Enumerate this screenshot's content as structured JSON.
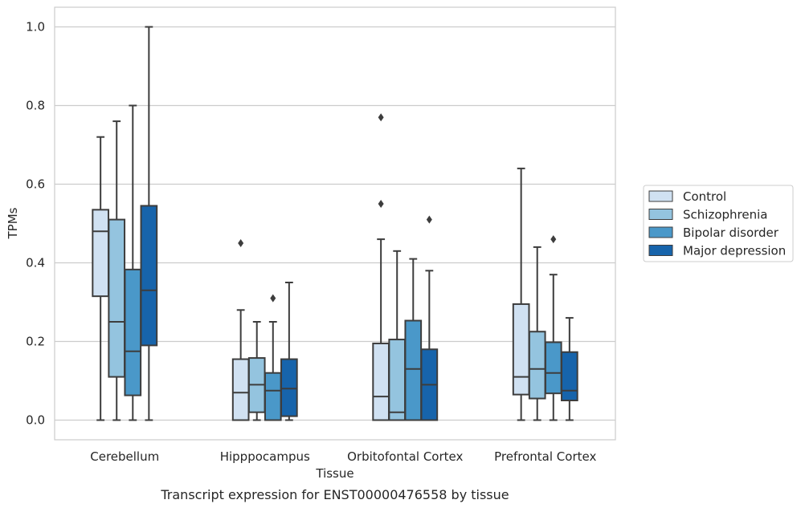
{
  "chart_data": {
    "type": "boxplot",
    "xlabel": "Tissue",
    "ylabel": "TPMs",
    "caption": "Transcript expression for ENST00000476558 by tissue",
    "ylim": [
      -0.05,
      1.05
    ],
    "yticks": [
      0.0,
      0.2,
      0.4,
      0.6,
      0.8,
      1.0
    ],
    "ytick_labels": [
      "0.0",
      "0.2",
      "0.4",
      "0.6",
      "0.8",
      "1.0"
    ],
    "grid": "horizontal",
    "legend_position": "right",
    "categories": [
      "Cerebellum",
      "Hipppocampus",
      "Orbitofontal Cortex",
      "Prefrontal Cortex"
    ],
    "series": [
      {
        "name": "Control",
        "color": "#d0e1f2",
        "boxes": [
          {
            "whislo": 0.0,
            "q1": 0.315,
            "med": 0.48,
            "q3": 0.535,
            "whishi": 0.72,
            "fliers": []
          },
          {
            "whislo": 0.0,
            "q1": 0.0,
            "med": 0.07,
            "q3": 0.155,
            "whishi": 0.28,
            "fliers": [
              0.45
            ]
          },
          {
            "whislo": 0.0,
            "q1": 0.0,
            "med": 0.06,
            "q3": 0.195,
            "whishi": 0.46,
            "fliers": [
              0.55,
              0.77
            ]
          },
          {
            "whislo": 0.0,
            "q1": 0.065,
            "med": 0.11,
            "q3": 0.295,
            "whishi": 0.64,
            "fliers": []
          }
        ]
      },
      {
        "name": "Schizophrenia",
        "color": "#94c4df",
        "boxes": [
          {
            "whislo": 0.0,
            "q1": 0.11,
            "med": 0.25,
            "q3": 0.51,
            "whishi": 0.76,
            "fliers": []
          },
          {
            "whislo": 0.0,
            "q1": 0.02,
            "med": 0.09,
            "q3": 0.158,
            "whishi": 0.25,
            "fliers": []
          },
          {
            "whislo": 0.0,
            "q1": 0.0,
            "med": 0.02,
            "q3": 0.205,
            "whishi": 0.43,
            "fliers": []
          },
          {
            "whislo": 0.0,
            "q1": 0.055,
            "med": 0.13,
            "q3": 0.225,
            "whishi": 0.44,
            "fliers": []
          }
        ]
      },
      {
        "name": "Bipolar disorder",
        "color": "#4a98c9",
        "boxes": [
          {
            "whislo": 0.0,
            "q1": 0.063,
            "med": 0.175,
            "q3": 0.383,
            "whishi": 0.8,
            "fliers": []
          },
          {
            "whislo": 0.0,
            "q1": 0.0,
            "med": 0.075,
            "q3": 0.12,
            "whishi": 0.25,
            "fliers": [
              0.31
            ]
          },
          {
            "whislo": 0.0,
            "q1": 0.0,
            "med": 0.13,
            "q3": 0.253,
            "whishi": 0.41,
            "fliers": []
          },
          {
            "whislo": 0.0,
            "q1": 0.068,
            "med": 0.12,
            "q3": 0.198,
            "whishi": 0.37,
            "fliers": [
              0.46
            ]
          }
        ]
      },
      {
        "name": "Major depression",
        "color": "#1764ab",
        "boxes": [
          {
            "whislo": 0.0,
            "q1": 0.19,
            "med": 0.33,
            "q3": 0.545,
            "whishi": 1.0,
            "fliers": []
          },
          {
            "whislo": 0.0,
            "q1": 0.01,
            "med": 0.08,
            "q3": 0.155,
            "whishi": 0.35,
            "fliers": []
          },
          {
            "whislo": 0.0,
            "q1": 0.0,
            "med": 0.09,
            "q3": 0.18,
            "whishi": 0.38,
            "fliers": [
              0.51
            ]
          },
          {
            "whislo": 0.0,
            "q1": 0.05,
            "med": 0.075,
            "q3": 0.173,
            "whishi": 0.26,
            "fliers": []
          }
        ]
      }
    ],
    "colors": {
      "grid": "#cccccc",
      "edge": "#3d3d3d",
      "axes_border": "#cccccc"
    }
  }
}
